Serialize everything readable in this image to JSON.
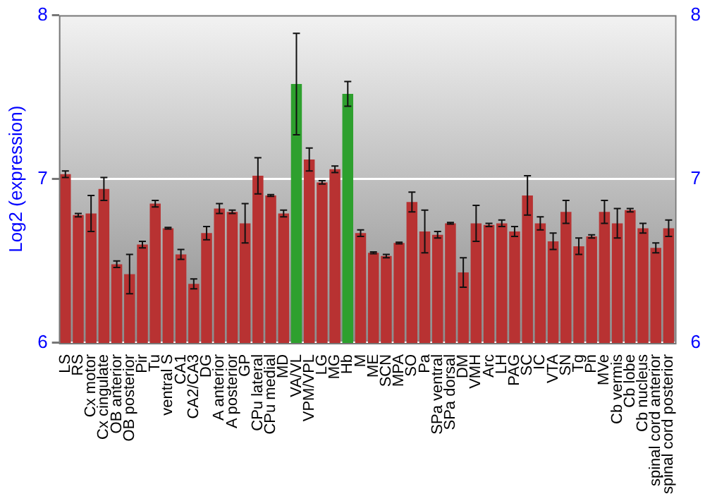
{
  "chart_data": {
    "type": "bar",
    "ylabel": "Log2 (expression)",
    "categories": [
      "LS",
      "RS",
      "Cx motor",
      "Cx cingulate",
      "OB anterior",
      "OB posterior",
      "Pir",
      "Tu",
      "ventral S",
      "CA1",
      "CA2/CA3",
      "DG",
      "A anterior",
      "A posterior",
      "GP",
      "CPu lateral",
      "CPu medial",
      "MD",
      "VA/VL",
      "VPM/VPL",
      "LG",
      "MG",
      "Hb",
      "M",
      "ME",
      "SCN",
      "MPA",
      "SO",
      "Pa",
      "SPa ventral",
      "SPa dorsal",
      "DM",
      "VMH",
      "Arc",
      "LH",
      "PAG",
      "SC",
      "IC",
      "VTA",
      "SN",
      "Tg",
      "Pn",
      "MVe",
      "Cb vermis",
      "Cb lobe",
      "Cb nucleus",
      "spinal cord anterior",
      "spinal cord posterior"
    ],
    "values": [
      7.03,
      6.78,
      6.79,
      6.94,
      6.48,
      6.42,
      6.6,
      6.85,
      6.7,
      6.54,
      6.36,
      6.67,
      6.82,
      6.8,
      6.73,
      7.02,
      6.9,
      6.79,
      7.58,
      7.12,
      6.98,
      7.06,
      7.52,
      6.67,
      6.55,
      6.53,
      6.61,
      6.86,
      6.68,
      6.66,
      6.73,
      6.43,
      6.73,
      6.72,
      6.73,
      6.68,
      6.9,
      6.73,
      6.62,
      6.8,
      6.59,
      6.65,
      6.8,
      6.73,
      6.81,
      6.7,
      6.58,
      6.7
    ],
    "errors": [
      0.02,
      0.01,
      0.11,
      0.07,
      0.02,
      0.12,
      0.02,
      0.02,
      0.005,
      0.03,
      0.03,
      0.04,
      0.03,
      0.01,
      0.12,
      0.11,
      0.005,
      0.02,
      0.31,
      0.07,
      0.01,
      0.02,
      0.075,
      0.02,
      0.005,
      0.01,
      0.005,
      0.06,
      0.13,
      0.02,
      0.005,
      0.09,
      0.11,
      0.01,
      0.02,
      0.03,
      0.12,
      0.04,
      0.05,
      0.07,
      0.05,
      0.01,
      0.07,
      0.09,
      0.01,
      0.03,
      0.03,
      0.05
    ],
    "colors": [
      "#b83232",
      "#b83232",
      "#b83232",
      "#b83232",
      "#b83232",
      "#b83232",
      "#b83232",
      "#b83232",
      "#b83232",
      "#b83232",
      "#b83232",
      "#b83232",
      "#b83232",
      "#b83232",
      "#b83232",
      "#b83232",
      "#b83232",
      "#b83232",
      "#2ea02e",
      "#b83232",
      "#b83232",
      "#b83232",
      "#2ea02e",
      "#b83232",
      "#b83232",
      "#b83232",
      "#b83232",
      "#b83232",
      "#b83232",
      "#b83232",
      "#b83232",
      "#b83232",
      "#b83232",
      "#b83232",
      "#b83232",
      "#b83232",
      "#b83232",
      "#b83232",
      "#b83232",
      "#b83232",
      "#b83232",
      "#b83232",
      "#b83232",
      "#b83232",
      "#b83232",
      "#b83232",
      "#b83232",
      "#b83232"
    ],
    "ylim": [
      6,
      8
    ],
    "yticks": [
      6,
      7,
      8
    ],
    "y2lim": [
      6,
      8
    ],
    "y2ticks": [
      6,
      7,
      8
    ],
    "grid": "y",
    "legend": false
  }
}
